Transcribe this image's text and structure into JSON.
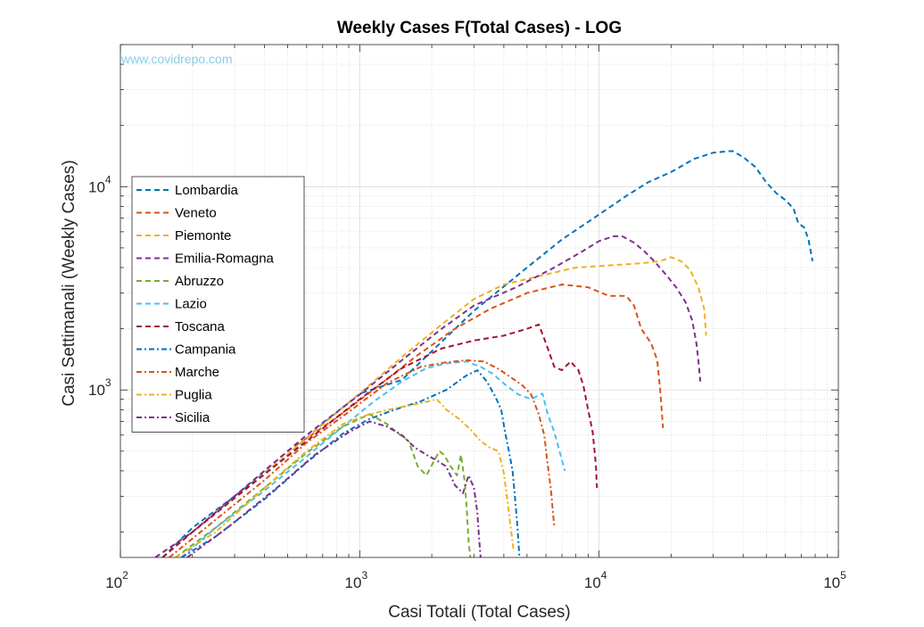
{
  "chart_data": {
    "type": "line",
    "title": "Weekly Cases F(Total Cases) - LOG",
    "xlabel": "Casi Totali (Total Cases)",
    "ylabel": "Casi Settimanali (Weekly Cases)",
    "watermark": "www.covidrepo.com",
    "watermark_color": "#87CEEB",
    "x_scale": "log",
    "y_scale": "log",
    "xlim": [
      100,
      100000
    ],
    "ylim": [
      150,
      50000
    ],
    "x_ticks": [
      {
        "value": 100,
        "base": "10",
        "exp": "2"
      },
      {
        "value": 1000,
        "base": "10",
        "exp": "3"
      },
      {
        "value": 10000,
        "base": "10",
        "exp": "4"
      },
      {
        "value": 100000,
        "base": "10",
        "exp": "5"
      }
    ],
    "y_ticks": [
      {
        "value": 1000,
        "base": "10",
        "exp": "3"
      },
      {
        "value": 10000,
        "base": "10",
        "exp": "4"
      }
    ],
    "grid": true,
    "minor_grid": true,
    "legend_position": "left",
    "line_style": "dashed",
    "series": [
      {
        "name": "Lombardia",
        "color": "#0072BD",
        "dash": "dashed",
        "points": [
          [
            150,
            150
          ],
          [
            200,
            210
          ],
          [
            300,
            300
          ],
          [
            500,
            480
          ],
          [
            700,
            680
          ],
          [
            1000,
            960
          ],
          [
            1500,
            1120
          ],
          [
            2000,
            1550
          ],
          [
            3000,
            2450
          ],
          [
            5000,
            4000
          ],
          [
            7000,
            5500
          ],
          [
            10000,
            7300
          ],
          [
            13000,
            9000
          ],
          [
            16000,
            10500
          ],
          [
            20000,
            11800
          ],
          [
            25000,
            13700
          ],
          [
            30000,
            14700
          ],
          [
            36000,
            15000
          ],
          [
            40000,
            14000
          ],
          [
            45000,
            12500
          ],
          [
            50000,
            10500
          ],
          [
            55000,
            9300
          ],
          [
            60000,
            8600
          ],
          [
            65000,
            7800
          ],
          [
            68000,
            6600
          ],
          [
            72000,
            6300
          ],
          [
            75000,
            5500
          ],
          [
            78000,
            4300
          ]
        ]
      },
      {
        "name": "Veneto",
        "color": "#D95319",
        "dash": "dashed",
        "points": [
          [
            140,
            150
          ],
          [
            200,
            200
          ],
          [
            300,
            300
          ],
          [
            500,
            500
          ],
          [
            800,
            730
          ],
          [
            1200,
            1050
          ],
          [
            1700,
            1450
          ],
          [
            2500,
            2000
          ],
          [
            3500,
            2500
          ],
          [
            5000,
            3000
          ],
          [
            7000,
            3300
          ],
          [
            9000,
            3200
          ],
          [
            11000,
            2900
          ],
          [
            13000,
            2900
          ],
          [
            14000,
            2600
          ],
          [
            15000,
            2000
          ],
          [
            16500,
            1700
          ],
          [
            17500,
            1400
          ],
          [
            18000,
            1000
          ],
          [
            18500,
            650
          ]
        ]
      },
      {
        "name": "Piemonte",
        "color": "#EDB120",
        "dash": "dashed",
        "points": [
          [
            150,
            150
          ],
          [
            200,
            200
          ],
          [
            350,
            340
          ],
          [
            600,
            580
          ],
          [
            1000,
            960
          ],
          [
            1500,
            1450
          ],
          [
            2200,
            2100
          ],
          [
            3000,
            2800
          ],
          [
            4000,
            3300
          ],
          [
            6000,
            3700
          ],
          [
            8000,
            4000
          ],
          [
            11000,
            4100
          ],
          [
            15000,
            4200
          ],
          [
            18000,
            4300
          ],
          [
            20000,
            4500
          ],
          [
            22000,
            4300
          ],
          [
            24000,
            3900
          ],
          [
            26000,
            3200
          ],
          [
            27500,
            2500
          ],
          [
            28000,
            1850
          ]
        ]
      },
      {
        "name": "Emilia-Romagna",
        "color": "#7E2F8E",
        "dash": "dashed",
        "points": [
          [
            140,
            150
          ],
          [
            200,
            200
          ],
          [
            350,
            350
          ],
          [
            600,
            600
          ],
          [
            1000,
            950
          ],
          [
            1500,
            1400
          ],
          [
            2200,
            2000
          ],
          [
            3000,
            2600
          ],
          [
            4500,
            3200
          ],
          [
            6500,
            4000
          ],
          [
            8500,
            4800
          ],
          [
            10000,
            5400
          ],
          [
            11500,
            5700
          ],
          [
            12500,
            5700
          ],
          [
            14000,
            5300
          ],
          [
            15500,
            4800
          ],
          [
            17000,
            4300
          ],
          [
            19000,
            3700
          ],
          [
            21000,
            3200
          ],
          [
            23000,
            2700
          ],
          [
            24500,
            2200
          ],
          [
            25500,
            1700
          ],
          [
            26000,
            1400
          ],
          [
            26500,
            1100
          ]
        ]
      },
      {
        "name": "Abruzzo",
        "color": "#77AC30",
        "dash": "dashed",
        "points": [
          [
            170,
            150
          ],
          [
            250,
            210
          ],
          [
            400,
            330
          ],
          [
            600,
            490
          ],
          [
            850,
            660
          ],
          [
            1100,
            760
          ],
          [
            1300,
            680
          ],
          [
            1450,
            610
          ],
          [
            1600,
            560
          ],
          [
            1750,
            420
          ],
          [
            1900,
            380
          ],
          [
            2050,
            450
          ],
          [
            2150,
            500
          ],
          [
            2250,
            480
          ],
          [
            2400,
            420
          ],
          [
            2550,
            380
          ],
          [
            2650,
            480
          ],
          [
            2750,
            350
          ],
          [
            2800,
            260
          ],
          [
            2850,
            180
          ],
          [
            2900,
            150
          ]
        ]
      },
      {
        "name": "Lazio",
        "color": "#4DBEEE",
        "dash": "dashed",
        "points": [
          [
            180,
            150
          ],
          [
            250,
            210
          ],
          [
            400,
            320
          ],
          [
            600,
            470
          ],
          [
            850,
            660
          ],
          [
            1150,
            880
          ],
          [
            1500,
            1100
          ],
          [
            1900,
            1280
          ],
          [
            2300,
            1350
          ],
          [
            2800,
            1380
          ],
          [
            3200,
            1300
          ],
          [
            3600,
            1200
          ],
          [
            4100,
            1050
          ],
          [
            4600,
            950
          ],
          [
            5200,
            900
          ],
          [
            5800,
            960
          ],
          [
            6100,
            760
          ],
          [
            6500,
            620
          ],
          [
            6900,
            480
          ],
          [
            7200,
            400
          ]
        ]
      },
      {
        "name": "Toscana",
        "color": "#A2142F",
        "dash": "dashed",
        "points": [
          [
            150,
            150
          ],
          [
            200,
            200
          ],
          [
            350,
            340
          ],
          [
            600,
            560
          ],
          [
            1000,
            900
          ],
          [
            1500,
            1280
          ],
          [
            2200,
            1600
          ],
          [
            3000,
            1750
          ],
          [
            4000,
            1850
          ],
          [
            5000,
            2000
          ],
          [
            5600,
            2100
          ],
          [
            6000,
            1700
          ],
          [
            6500,
            1300
          ],
          [
            7000,
            1250
          ],
          [
            7600,
            1380
          ],
          [
            8200,
            1250
          ],
          [
            8600,
            1050
          ],
          [
            9000,
            800
          ],
          [
            9400,
            620
          ],
          [
            9700,
            430
          ],
          [
            9800,
            330
          ]
        ]
      },
      {
        "name": "Campania",
        "color": "#0072BD",
        "dash": "dashdot",
        "points": [
          [
            180,
            150
          ],
          [
            250,
            190
          ],
          [
            400,
            290
          ],
          [
            600,
            440
          ],
          [
            850,
            610
          ],
          [
            1100,
            720
          ],
          [
            1400,
            800
          ],
          [
            1800,
            880
          ],
          [
            2300,
            1000
          ],
          [
            2800,
            1180
          ],
          [
            3100,
            1250
          ],
          [
            3400,
            1100
          ],
          [
            3700,
            920
          ],
          [
            3900,
            800
          ],
          [
            4050,
            620
          ],
          [
            4200,
            500
          ],
          [
            4350,
            400
          ],
          [
            4450,
            300
          ],
          [
            4550,
            220
          ],
          [
            4650,
            150
          ]
        ]
      },
      {
        "name": "Marche",
        "color": "#D95319",
        "dash": "dashdot",
        "points": [
          [
            160,
            150
          ],
          [
            250,
            230
          ],
          [
            400,
            360
          ],
          [
            600,
            550
          ],
          [
            900,
            780
          ],
          [
            1300,
            1080
          ],
          [
            1800,
            1300
          ],
          [
            2300,
            1370
          ],
          [
            2800,
            1400
          ],
          [
            3300,
            1380
          ],
          [
            3800,
            1270
          ],
          [
            4300,
            1150
          ],
          [
            4800,
            1050
          ],
          [
            5200,
            950
          ],
          [
            5600,
            760
          ],
          [
            5900,
            600
          ],
          [
            6100,
            430
          ],
          [
            6300,
            320
          ],
          [
            6500,
            210
          ]
        ]
      },
      {
        "name": "Puglia",
        "color": "#EDB120",
        "dash": "dashdot",
        "points": [
          [
            170,
            150
          ],
          [
            250,
            200
          ],
          [
            400,
            330
          ],
          [
            600,
            500
          ],
          [
            850,
            680
          ],
          [
            1100,
            760
          ],
          [
            1450,
            820
          ],
          [
            1800,
            860
          ],
          [
            2100,
            900
          ],
          [
            2300,
            800
          ],
          [
            2600,
            720
          ],
          [
            2900,
            640
          ],
          [
            3200,
            560
          ],
          [
            3500,
            520
          ],
          [
            3800,
            500
          ],
          [
            4000,
            390
          ],
          [
            4150,
            280
          ],
          [
            4300,
            200
          ],
          [
            4400,
            160
          ]
        ]
      },
      {
        "name": "Sicilia",
        "color": "#7E2F8E",
        "dash": "dashdot",
        "points": [
          [
            190,
            150
          ],
          [
            280,
            210
          ],
          [
            450,
            330
          ],
          [
            650,
            480
          ],
          [
            900,
            620
          ],
          [
            1100,
            700
          ],
          [
            1300,
            660
          ],
          [
            1500,
            600
          ],
          [
            1700,
            520
          ],
          [
            1900,
            480
          ],
          [
            2100,
            450
          ],
          [
            2300,
            420
          ],
          [
            2500,
            340
          ],
          [
            2700,
            310
          ],
          [
            2850,
            380
          ],
          [
            3000,
            330
          ],
          [
            3100,
            250
          ],
          [
            3150,
            190
          ],
          [
            3200,
            150
          ]
        ]
      }
    ]
  }
}
